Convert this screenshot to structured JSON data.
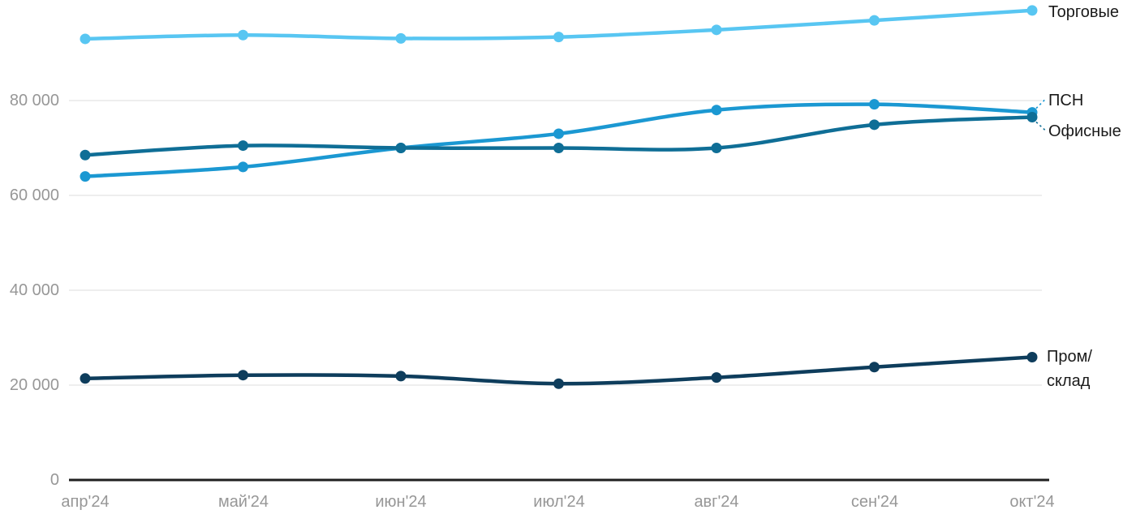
{
  "chart_data": {
    "type": "line",
    "title": "",
    "xlabel": "",
    "ylabel": "",
    "x_categories": [
      "апр'24",
      "май'24",
      "июн'24",
      "июл'24",
      "авг'24",
      "сен'24",
      "окт'24"
    ],
    "y_ticks": [
      "0",
      "20 000",
      "40 000",
      "60 000",
      "80 000"
    ],
    "y_tick_values": [
      0,
      20000,
      40000,
      60000,
      80000
    ],
    "ylim": [
      0,
      101000
    ],
    "grid": "horizontal-only",
    "legend_position": "right-end-of-line-labels",
    "series": [
      {
        "name": "Торговые",
        "color": "#58C6F2",
        "values": [
          93000,
          93800,
          93100,
          93400,
          94900,
          96900,
          99000
        ]
      },
      {
        "name": "ПСН",
        "color": "#1B98D2",
        "values": [
          64000,
          66000,
          70000,
          73000,
          78000,
          79200,
          77500
        ]
      },
      {
        "name": "Офисные",
        "color": "#0F6E96",
        "values": [
          68500,
          70500,
          70000,
          70000,
          70000,
          74900,
          76500
        ]
      },
      {
        "name": "Пром/склад",
        "color": "#0E3D5C",
        "values": [
          21400,
          22100,
          21900,
          20300,
          21600,
          23800,
          25900
        ]
      }
    ],
    "colors": {
      "grid": "#E8E8E8",
      "axis": "#1F1F1F",
      "tick_text": "#979797",
      "label_text": "#1A1A1A",
      "background": "#FFFFFF"
    }
  }
}
